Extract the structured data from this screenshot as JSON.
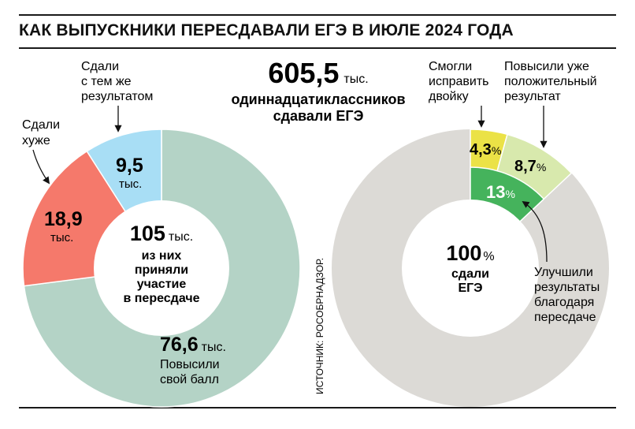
{
  "title": "КАК ВЫПУСКНИКИ ПЕРЕСДАВАЛИ ЕГЭ В ИЮЛЕ 2024 ГОДА",
  "source": "ИСТОЧНИК: РОСОБРНАДЗОР.",
  "center": {
    "total_value": "605,5",
    "total_unit": "тыс.",
    "total_line1": "одиннадцатиклассников",
    "total_line2": "сдавали ЕГЭ"
  },
  "left_donut": {
    "center_value": "105",
    "center_unit": "тыс.",
    "center_lines": [
      "из них",
      "приняли",
      "участие",
      "в пересдаче"
    ],
    "unit": "тыс.",
    "labels": {
      "worse": [
        "Сдали",
        "хуже"
      ],
      "same": [
        "Сдали",
        "с тем же",
        "результатом"
      ],
      "improved": [
        "Повысили",
        "свой балл"
      ]
    },
    "display": {
      "improved": "76,6",
      "worse": "18,9",
      "same": "9,5"
    }
  },
  "right_donut": {
    "center_value": "100",
    "center_unit": "%",
    "center_lines": [
      "сдали",
      "ЕГЭ"
    ],
    "labels": {
      "fixed_two": [
        "Смогли",
        "исправить",
        "двойку"
      ],
      "raised_positive": [
        "Повысили уже",
        "положительный",
        "результат"
      ],
      "improved": [
        "Улучшили",
        "результаты",
        "благодаря",
        "пересдаче"
      ]
    },
    "display": {
      "fixed_two": "4,3",
      "raised_positive": "8,7",
      "improved": "13"
    }
  },
  "colors": {
    "improved_left": "#b4d3c6",
    "worse": "#f5796b",
    "same": "#a8def5",
    "rest": "#dcdad6",
    "fixed_two": "#ebe246",
    "raised_positive": "#d8e9ad",
    "improved_right": "#45b35c"
  },
  "chart_data": [
    {
      "type": "pie",
      "title": "105 тыс.",
      "unit": "тыс.",
      "categories": [
        "Повысили свой балл",
        "Сдали хуже",
        "Сдали с тем же результатом"
      ],
      "values": [
        76.6,
        18.9,
        9.5
      ]
    },
    {
      "type": "pie",
      "title": "100%",
      "unit": "%",
      "categories": [
        "Смогли исправить двойку",
        "Повысили уже положительный результат"
      ],
      "values": [
        4.3,
        8.7
      ]
    }
  ]
}
